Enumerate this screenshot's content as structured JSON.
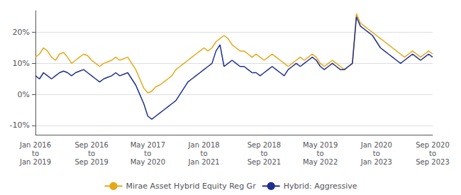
{
  "chart_data": {
    "type": "line",
    "categories": [
      "Jan 2016\nto\nJan 2019",
      null,
      null,
      null,
      null,
      null,
      null,
      null,
      null,
      null,
      null,
      null,
      null,
      null,
      "Sep 2016\nto\nSep 2019",
      null,
      null,
      null,
      null,
      null,
      null,
      null,
      null,
      null,
      null,
      null,
      null,
      null,
      "May 2017\nto\nMay 2020",
      null,
      null,
      null,
      null,
      null,
      null,
      null,
      null,
      null,
      null,
      null,
      null,
      null,
      "Jan 2018\nto\nJan 2021",
      null,
      null,
      null,
      null,
      null,
      null,
      null,
      null,
      null,
      null,
      null,
      null,
      null,
      null,
      "Sep 2018\nto\nSep 2021",
      null,
      null,
      null,
      null,
      null,
      null,
      null,
      null,
      null,
      null,
      null,
      null,
      null,
      "May 2019\nto\nMay 2022",
      null,
      null,
      null,
      null,
      null,
      null,
      null,
      null,
      null,
      null,
      null,
      null,
      null,
      "Jan 2020\nto\nJan 2023",
      null,
      null,
      null,
      null,
      null,
      null,
      null,
      null,
      null,
      null,
      null,
      null,
      null,
      "Sep 2020\nto\nSep 2023"
    ],
    "series": [
      {
        "name": "Mirae Asset Hybrid Equity Reg Gr",
        "color": "#E6A817",
        "values": [
          12,
          13,
          15,
          14,
          12,
          11,
          13,
          13.5,
          12,
          10,
          11,
          12,
          13,
          12.5,
          11,
          10,
          9,
          10,
          10.5,
          11,
          12,
          11,
          11.5,
          12,
          10,
          8,
          5,
          2,
          0.5,
          1,
          2.5,
          3,
          4,
          5,
          6,
          8,
          9,
          10,
          11,
          12,
          13,
          14,
          15,
          14,
          15,
          17,
          18,
          19,
          18,
          16,
          15,
          14,
          14,
          13,
          12,
          13,
          12,
          11,
          12,
          13,
          12,
          11,
          10,
          9,
          10,
          11,
          12,
          11,
          12,
          13,
          12,
          10,
          9,
          10,
          11,
          10,
          9,
          8,
          9,
          10,
          26,
          23,
          22,
          21,
          20,
          19,
          18,
          17,
          16,
          15,
          14,
          13,
          12,
          13,
          14,
          13,
          12,
          13,
          14,
          13
        ]
      },
      {
        "name": "Hybrid: Aggressive",
        "color": "#1F2F8C",
        "values": [
          6,
          5,
          7,
          6,
          5,
          6,
          7,
          7.5,
          7,
          6,
          7,
          7.5,
          8,
          7,
          6,
          5,
          4,
          5,
          5.5,
          6,
          7,
          6,
          6.5,
          7,
          5,
          3,
          0,
          -3,
          -7,
          -8,
          -7,
          -6,
          -5,
          -4,
          -3,
          -2,
          0,
          2,
          4,
          5,
          6,
          7,
          8,
          9,
          10,
          14,
          16,
          9,
          10,
          11,
          10,
          9,
          9,
          8,
          7,
          7,
          6,
          7,
          8,
          9,
          8,
          7,
          6,
          8,
          9,
          10,
          9,
          10,
          11,
          12,
          11,
          9,
          8,
          9,
          10,
          9,
          8,
          8,
          9,
          10,
          25,
          22,
          21,
          20,
          19,
          17,
          15,
          14,
          13,
          12,
          11,
          10,
          11,
          12,
          13,
          12,
          11,
          12,
          13,
          12
        ]
      }
    ],
    "ylim": [
      -13,
      27
    ],
    "yticks": [
      {
        "value": -10,
        "label": "-10%"
      },
      {
        "value": 0,
        "label": "0%"
      },
      {
        "value": 10,
        "label": "10%"
      },
      {
        "value": 20,
        "label": "20%"
      }
    ],
    "grid": true,
    "legend": "bottom"
  }
}
